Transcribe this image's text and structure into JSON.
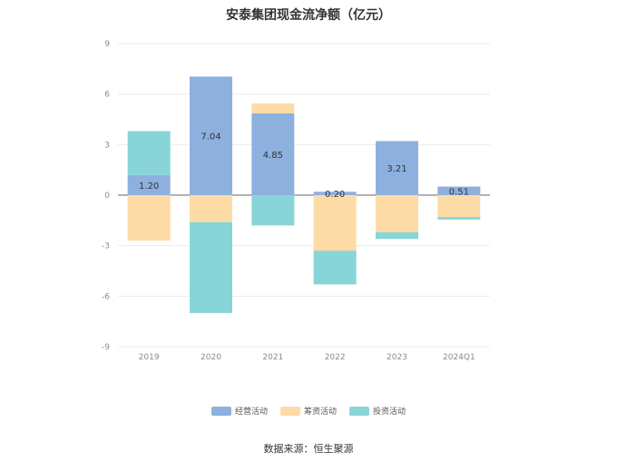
{
  "chart_data": {
    "type": "bar",
    "stacked": true,
    "title": "安泰集团现金流净额（亿元）",
    "categories": [
      "2019",
      "2020",
      "2021",
      "2022",
      "2023",
      "2024Q1"
    ],
    "ylim": [
      -9,
      9
    ],
    "yticks": [
      9,
      6,
      3,
      0,
      -3,
      -6,
      -9
    ],
    "grid": true,
    "legend_position": "bottom",
    "series": [
      {
        "name": "经营活动",
        "color": "#8eb0de",
        "values": [
          1.2,
          7.04,
          4.85,
          0.2,
          3.21,
          0.51
        ],
        "labels": [
          "1.20",
          "7.04",
          "4.85",
          "0.20",
          "3.21",
          "0.51"
        ]
      },
      {
        "name": "筹资活动",
        "color": "#fddba6",
        "values": [
          -2.7,
          -1.6,
          0.6,
          -3.3,
          -2.2,
          -1.3
        ]
      },
      {
        "name": "投资活动",
        "color": "#87d5d8",
        "values": [
          2.6,
          -5.4,
          -1.8,
          -2.0,
          -0.4,
          -0.15
        ]
      }
    ]
  },
  "source": "数据来源：恒生聚源"
}
